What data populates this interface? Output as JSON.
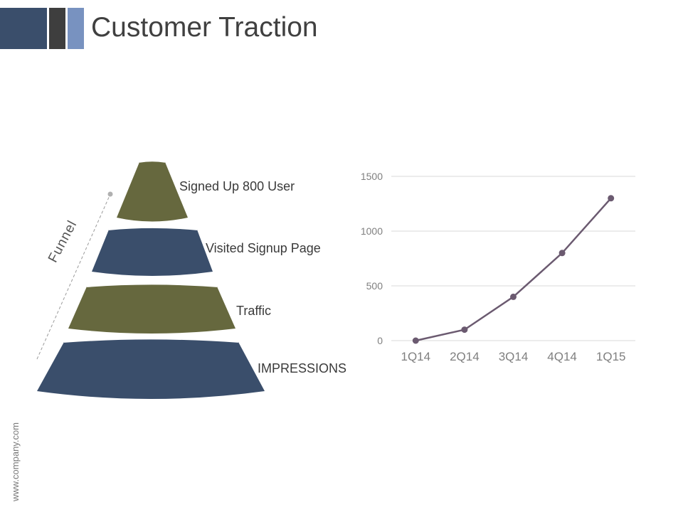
{
  "header": {
    "title": "Customer Traction"
  },
  "footer": {
    "url": "www.company.com"
  },
  "funnel": {
    "side_label": "Funnel",
    "stages": [
      {
        "label": "Signed  Up 800 User",
        "color": "#66683e"
      },
      {
        "label": "Visited Signup Page",
        "color": "#3a4e6b"
      },
      {
        "label": "Traffic",
        "color": "#66683e"
      },
      {
        "label": "IMPRESSIONS",
        "color": "#3a4e6b"
      }
    ]
  },
  "chart_data": {
    "type": "line",
    "categories": [
      "1Q14",
      "2Q14",
      "3Q14",
      "4Q14",
      "1Q15"
    ],
    "series": [
      {
        "values": [
          0,
          100,
          400,
          800,
          1300
        ]
      }
    ],
    "ylim": [
      0,
      1500
    ],
    "yticks": [
      0,
      500,
      1000,
      1500
    ],
    "grid": true,
    "line_color": "#6b5a70"
  }
}
